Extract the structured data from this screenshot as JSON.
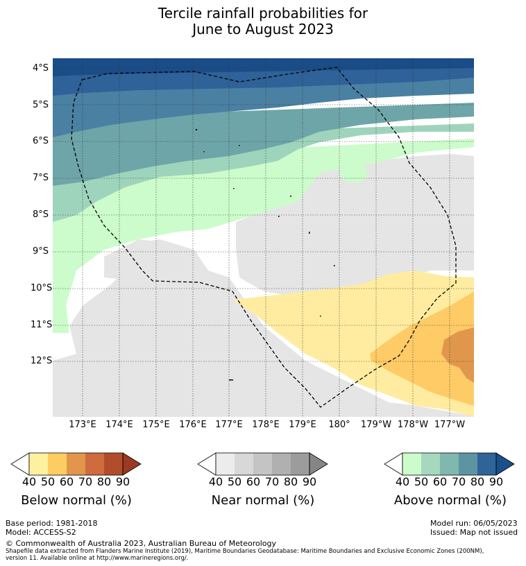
{
  "title_line1": "Tercile rainfall probabilities for",
  "title_line2": "June to August 2023",
  "lat_labels": [
    "4°S",
    "5°S",
    "6°S",
    "7°S",
    "8°S",
    "9°S",
    "10°S",
    "11°S",
    "12°S"
  ],
  "lon_labels": [
    "173°E",
    "174°E",
    "175°E",
    "176°E",
    "177°E",
    "178°E",
    "179°E",
    "180°",
    "179°W",
    "178°W",
    "177°W"
  ],
  "colorbars": [
    {
      "id": "below",
      "title": "Below normal (%)",
      "ticks": [
        "40",
        "50",
        "60",
        "70",
        "80",
        "90"
      ],
      "colors": [
        "#ffffff",
        "#fff0a0",
        "#fecd62",
        "#e2964c",
        "#cf6b3f",
        "#b24d2c",
        "#9a3a22"
      ]
    },
    {
      "id": "near",
      "title": "Near normal (%)",
      "ticks": [
        "40",
        "50",
        "60",
        "70",
        "80",
        "90"
      ],
      "colors": [
        "#ffffff",
        "#ececec",
        "#d8d8d8",
        "#c4c4c4",
        "#b0b0b0",
        "#9c9c9c",
        "#858585"
      ]
    },
    {
      "id": "above",
      "title": "Above normal (%)",
      "ticks": [
        "40",
        "50",
        "60",
        "70",
        "80",
        "90"
      ],
      "colors": [
        "#ffffff",
        "#ccfccb",
        "#a5d8bf",
        "#80b7ae",
        "#5b95a1",
        "#2f6498",
        "#1b4f8a"
      ]
    }
  ],
  "map_colors": {
    "near": "#e5e5e5",
    "below40": "#ffeca0",
    "below50": "#ffcb66",
    "below60": "#e0974c",
    "above40": "#ccfccb",
    "above50": "#9fd4bc",
    "above60": "#6ea5a8",
    "above70": "#4a80a2",
    "above80": "#2e6298",
    "above90": "#1a4c88"
  },
  "footer": {
    "base_period": "Base period: 1981-2018",
    "model": "Model: ACCESS-S2",
    "model_run": "Model run: 06/05/2023",
    "issued": "Issued: Map not issued",
    "copyright": "© Commonwealth of Australia 2023, Australian Bureau of Meteorology",
    "shapefile_line1": "Shapefile data extracted from Flanders Marine Institute (2019), Maritime Boundaries Geodatabase: Maritime Boundaries and Exclusive Economic Zones (200NM),",
    "shapefile_line2": "version 11. Available online at http://www.marineregions.org/."
  }
}
